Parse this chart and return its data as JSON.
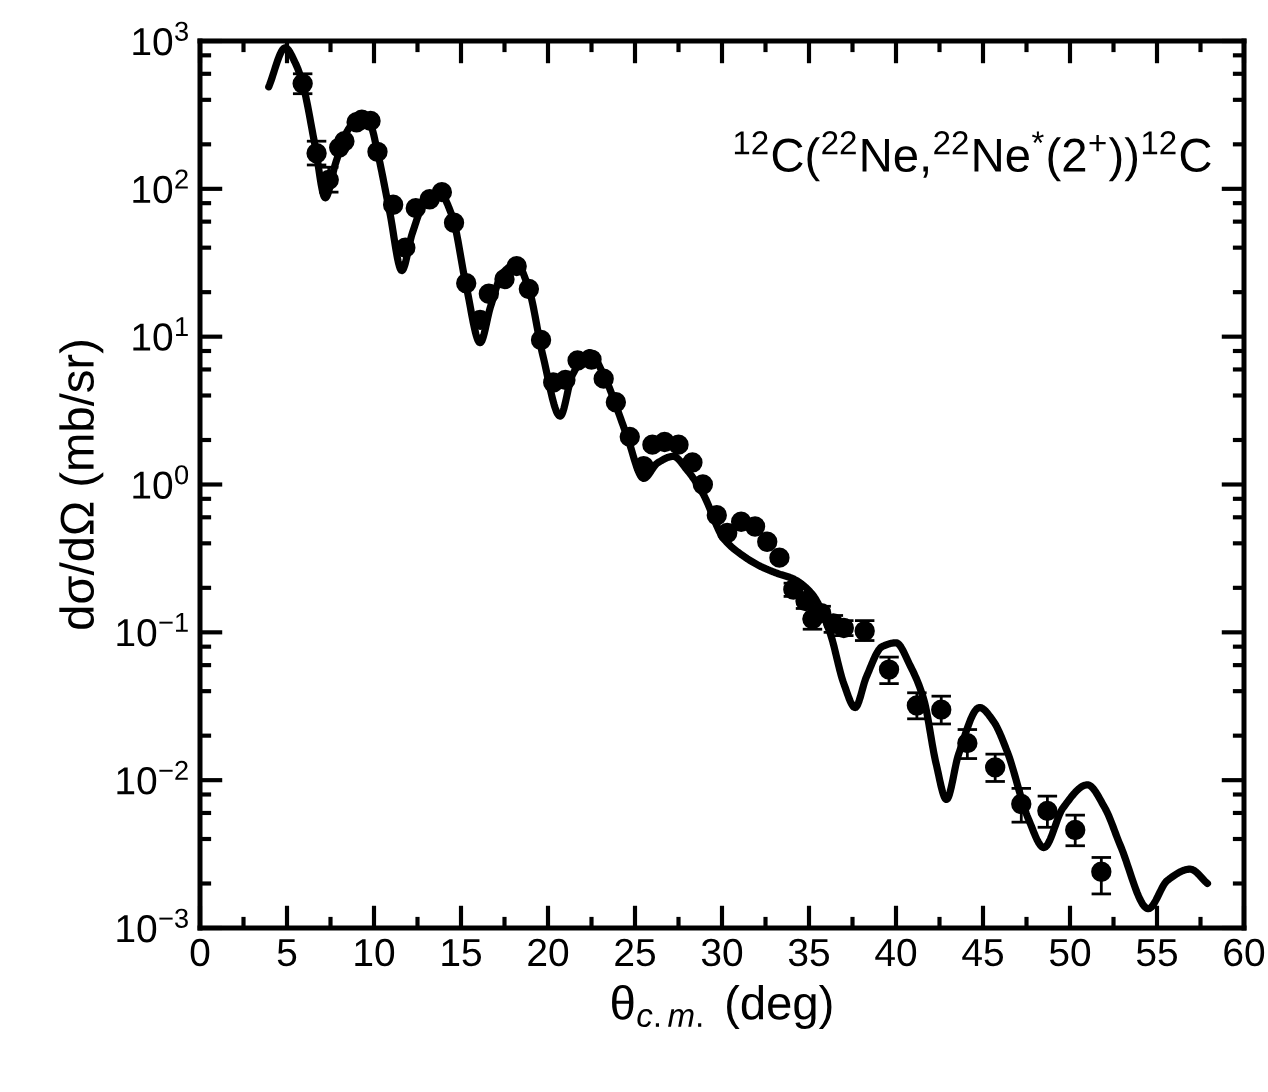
{
  "chart_data": {
    "type": "scatter",
    "xlabel": "θ$_{c.m.}$ (deg)",
    "ylabel": "dσ/dΩ (mb/sr)",
    "annotations": [
      "$^{12}$C($^{22}$Ne,$^{22}$Ne$^{*}$(2$^{+}$))$^{12}$C"
    ],
    "log": "y",
    "grid": false,
    "legend": false,
    "xlim": [
      0,
      60
    ],
    "xticks": [
      0,
      5,
      10,
      15,
      20,
      25,
      30,
      35,
      40,
      45,
      50,
      55,
      60
    ],
    "ylim": [
      0.001,
      1000
    ],
    "yticks": [
      {
        "value": 0.001,
        "label": "10$^{−3}$"
      },
      {
        "value": 0.01,
        "label": "10$^{−2}$"
      },
      {
        "value": 0.1,
        "label": "10$^{−1}$"
      },
      {
        "value": 1,
        "label": "10$^{0}$"
      },
      {
        "value": 10,
        "label": "10$^{1}$"
      },
      {
        "value": 100,
        "label": "10$^{2}$"
      },
      {
        "value": 1000,
        "label": "10$^{3}$"
      }
    ],
    "series": [
      {
        "type": "line",
        "color": "#000000",
        "line_style": "solid",
        "marker": "none",
        "x": [
          3.95,
          4.9,
          5.5,
          5.9,
          6.6,
          7.2,
          7.8,
          8.5,
          9.2,
          9.8,
          10.2,
          10.9,
          11.6,
          12.2,
          13.0,
          13.75,
          14.5,
          15.3,
          16.1,
          16.7,
          17.4,
          18.2,
          18.9,
          19.7,
          20.7,
          21.4,
          22.4,
          23.2,
          24.5,
          25.5,
          26.3,
          27.2,
          28.0,
          28.9,
          30.1,
          31.2,
          32.2,
          33.2,
          34.1,
          35.2,
          36.2,
          37.0,
          37.65,
          38.3,
          39.2,
          40.0,
          40.8,
          41.6,
          42.3,
          42.9,
          43.6,
          44.8,
          45.6,
          46.4,
          47.6,
          48.5,
          49.6,
          51.0,
          52.0,
          52.9,
          54.5,
          55.6,
          56.9,
          57.9
        ],
        "values": [
          490,
          900,
          700,
          515,
          200,
          87,
          150,
          250,
          308,
          270,
          178,
          70,
          28,
          50,
          85,
          94,
          65,
          22,
          9.1,
          16,
          27,
          31,
          21,
          7.5,
          2.9,
          5.5,
          7.8,
          5.5,
          2.2,
          1.1,
          1.4,
          1.55,
          1.25,
          0.87,
          0.43,
          0.33,
          0.28,
          0.25,
          0.23,
          0.18,
          0.1,
          0.045,
          0.031,
          0.05,
          0.08,
          0.085,
          0.06,
          0.035,
          0.013,
          0.0074,
          0.015,
          0.031,
          0.025,
          0.0155,
          0.0055,
          0.0035,
          0.0065,
          0.0093,
          0.0065,
          0.0036,
          0.00135,
          0.0021,
          0.0025,
          0.002
        ]
      },
      {
        "color": "#000000",
        "marker": "circle",
        "x": [
          5.9,
          6.7,
          7.4,
          8.0,
          8.3,
          9.0,
          9.3,
          9.8,
          10.2,
          11.1,
          11.8,
          12.4,
          13.2,
          13.9,
          14.6,
          15.3,
          16.1,
          16.6,
          17.5,
          18.2,
          18.9,
          19.6,
          20.3,
          21.0,
          21.7,
          22.5,
          23.2,
          23.9,
          24.7,
          25.5,
          26.0,
          26.7,
          27.5,
          28.3,
          28.9,
          29.7,
          30.3,
          31.1,
          31.9,
          32.6,
          33.3,
          34.1,
          34.8,
          35.2,
          35.7,
          36.4,
          37.0,
          38.2,
          39.6,
          41.2,
          42.6,
          44.1,
          45.7,
          47.2,
          48.7,
          50.3,
          51.8
        ],
        "values": [
          515,
          174,
          115,
          190,
          210,
          282,
          294,
          288,
          178,
          78,
          40,
          74,
          85,
          95,
          59,
          23,
          13,
          19.5,
          24.5,
          30,
          21,
          9.5,
          4.9,
          5.1,
          6.9,
          7.0,
          5.2,
          3.6,
          2.1,
          1.33,
          1.86,
          1.94,
          1.86,
          1.41,
          1.0,
          0.62,
          0.47,
          0.56,
          0.52,
          0.41,
          0.32,
          0.195,
          0.163,
          0.123,
          0.135,
          0.115,
          0.107,
          0.102,
          0.056,
          0.032,
          0.03,
          0.0178,
          0.0122,
          0.0069,
          0.0062,
          0.0046,
          0.0024
        ],
        "errors": [
          [
            440,
            600
          ],
          [
            145,
            210
          ],
          [
            95,
            140
          ],
          null,
          null,
          null,
          null,
          null,
          null,
          null,
          null,
          null,
          null,
          null,
          null,
          null,
          null,
          null,
          null,
          null,
          null,
          null,
          null,
          null,
          null,
          null,
          null,
          null,
          null,
          null,
          null,
          null,
          null,
          null,
          null,
          null,
          null,
          null,
          null,
          null,
          null,
          [
            0.175,
            0.215
          ],
          [
            0.145,
            0.18
          ],
          [
            0.105,
            0.123
          ],
          [
            0.12,
            0.15
          ],
          [
            0.1,
            0.13
          ],
          [
            0.095,
            0.12
          ],
          [
            0.088,
            0.12
          ],
          [
            0.045,
            0.068
          ],
          [
            0.026,
            0.039
          ],
          [
            0.024,
            0.037
          ],
          [
            0.014,
            0.022
          ],
          [
            0.0098,
            0.015
          ],
          [
            0.0052,
            0.0088
          ],
          [
            0.0048,
            0.0078
          ],
          [
            0.0036,
            0.0058
          ],
          [
            0.0017,
            0.003
          ]
        ]
      }
    ]
  }
}
